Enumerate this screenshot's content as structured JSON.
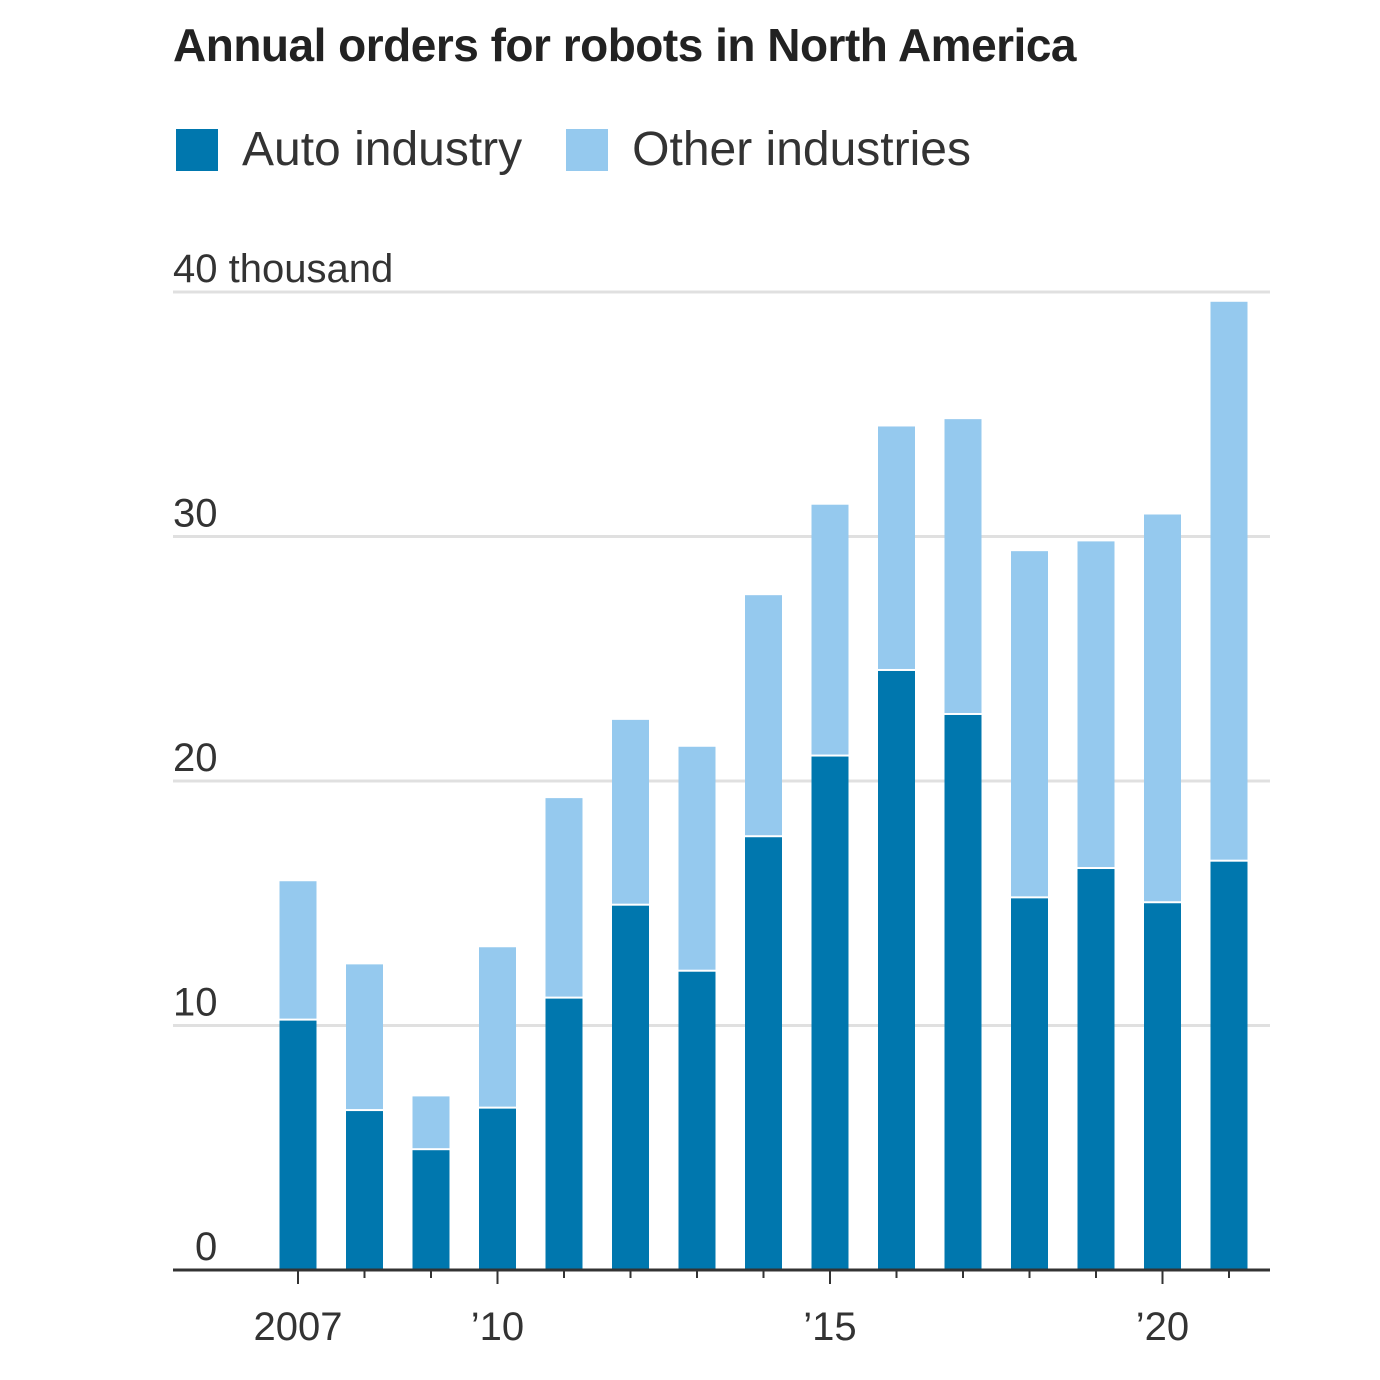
{
  "chart_data": {
    "type": "bar",
    "stacked": true,
    "title": "Annual orders for robots in North America",
    "ylabel_unit": "40 thousand",
    "ylim": [
      0,
      40
    ],
    "yticks": [
      0,
      10,
      20,
      30,
      40
    ],
    "ytick_labels": [
      "0",
      "10",
      "20",
      "30",
      "40 thousand"
    ],
    "categories": [
      2007,
      2008,
      2009,
      2010,
      2011,
      2012,
      2013,
      2014,
      2015,
      2016,
      2017,
      2018,
      2019,
      2020,
      2021
    ],
    "xtick_labels": {
      "2007": "2007",
      "2010": "’10",
      "2015": "’15",
      "2020": "’20"
    },
    "grid": true,
    "legend_position": "top-left",
    "series": [
      {
        "name": "Auto industry",
        "color": "#0077AE",
        "values": [
          10.2,
          6.5,
          4.9,
          6.6,
          11.1,
          14.9,
          12.2,
          17.7,
          21.0,
          24.5,
          22.7,
          15.2,
          16.4,
          15.0,
          16.7
        ]
      },
      {
        "name": "Other industries",
        "color": "#95C9EE",
        "values": [
          5.7,
          6.0,
          2.2,
          6.6,
          8.2,
          7.6,
          9.2,
          9.9,
          10.3,
          10.0,
          12.1,
          14.2,
          13.4,
          15.9,
          22.9
        ]
      }
    ]
  }
}
